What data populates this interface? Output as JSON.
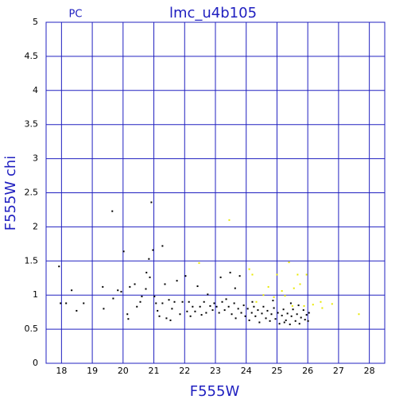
{
  "chart_data": {
    "type": "scatter",
    "title": "lmc_u4b105",
    "corner_label": "PC",
    "x_label": "F555W",
    "y_label": "F555W chi",
    "xlim": [
      17.5,
      28.5
    ],
    "xticks": [
      18,
      19,
      20,
      21,
      22,
      23,
      24,
      25,
      26,
      27,
      28
    ],
    "ylim": [
      0,
      5
    ],
    "yticks": [
      0,
      0.5,
      1,
      1.5,
      2,
      2.5,
      3,
      3.5,
      4,
      4.5,
      5
    ],
    "grid": true,
    "grid_color": "#2020c0",
    "series": [
      {
        "color": "#000000",
        "x": [
          17.92,
          17.97,
          18.15,
          18.33,
          18.49,
          18.72,
          19.34,
          19.37,
          19.65,
          19.68,
          19.83,
          19.94,
          20.02,
          20.14,
          20.17,
          20.22,
          20.38,
          20.45,
          20.56,
          20.61,
          20.74,
          20.76,
          20.84,
          20.87,
          20.92,
          20.97,
          21.02,
          21.07,
          21.12,
          21.18,
          21.28,
          21.28,
          21.36,
          21.41,
          21.49,
          21.54,
          21.59,
          21.67,
          21.75,
          21.85,
          21.93,
          22.03,
          22.08,
          22.14,
          22.19,
          22.26,
          22.34,
          22.42,
          22.5,
          22.55,
          22.63,
          22.7,
          22.75,
          22.83,
          22.91,
          22.96,
          23.04,
          23.12,
          23.17,
          23.22,
          23.3,
          23.35,
          23.43,
          23.48,
          23.53,
          23.61,
          23.66,
          23.74,
          23.79,
          23.84,
          23.92,
          23.97,
          24.05,
          24.1,
          24.18,
          24.25,
          24.3,
          24.38,
          24.43,
          24.51,
          24.56,
          24.64,
          24.69,
          24.77,
          24.82,
          24.9,
          24.95,
          25.03,
          25.08,
          25.16,
          25.21,
          25.29,
          25.34,
          25.42,
          25.47,
          25.52,
          25.6,
          25.65,
          25.73,
          25.78,
          25.86,
          25.91,
          25.96,
          26.01,
          26.04,
          24.2,
          24.87,
          25.45,
          23.64,
          25.7,
          25.24
        ],
        "values": [
          1.42,
          0.88,
          0.88,
          1.07,
          0.77,
          0.88,
          1.12,
          0.8,
          2.23,
          0.95,
          1.07,
          1.05,
          1.64,
          0.72,
          0.65,
          1.12,
          1.16,
          0.83,
          0.9,
          0.98,
          1.09,
          1.33,
          1.53,
          1.26,
          2.36,
          1.66,
          0.98,
          0.88,
          0.77,
          0.69,
          1.72,
          0.88,
          1.16,
          0.66,
          0.93,
          0.63,
          0.8,
          0.9,
          1.21,
          0.72,
          0.9,
          1.28,
          0.76,
          0.9,
          0.69,
          0.83,
          0.76,
          1.13,
          0.83,
          0.71,
          0.9,
          0.74,
          1.01,
          0.84,
          0.78,
          0.88,
          0.83,
          0.74,
          1.26,
          0.9,
          0.78,
          0.94,
          0.83,
          1.33,
          0.72,
          0.88,
          0.66,
          0.8,
          1.28,
          0.74,
          0.85,
          0.69,
          0.8,
          0.63,
          0.74,
          0.83,
          0.69,
          0.78,
          0.6,
          0.73,
          0.83,
          0.66,
          0.77,
          0.62,
          0.72,
          0.81,
          0.65,
          0.74,
          0.58,
          0.7,
          0.79,
          0.63,
          0.73,
          0.57,
          0.69,
          0.79,
          0.62,
          0.72,
          0.58,
          0.67,
          0.78,
          0.64,
          0.71,
          0.62,
          0.74,
          0.9,
          0.92,
          0.88,
          1.1,
          0.85,
          0.6
        ]
      },
      {
        "color": "#e8e800",
        "x": [
          23.45,
          22.47,
          24.1,
          24.2,
          24.72,
          25.0,
          25.16,
          25.26,
          25.39,
          25.55,
          25.67,
          25.75,
          25.88,
          26.17,
          26.42,
          26.47,
          26.79,
          27.66,
          24.56,
          24.9,
          25.5,
          24.33,
          25.96
        ],
        "values": [
          2.1,
          1.47,
          1.38,
          1.3,
          1.12,
          1.3,
          1.06,
          0.99,
          1.48,
          1.1,
          1.3,
          1.16,
          0.84,
          0.86,
          0.9,
          0.81,
          0.87,
          0.72,
          1.0,
          0.97,
          0.84,
          0.9,
          1.3
        ]
      }
    ]
  }
}
